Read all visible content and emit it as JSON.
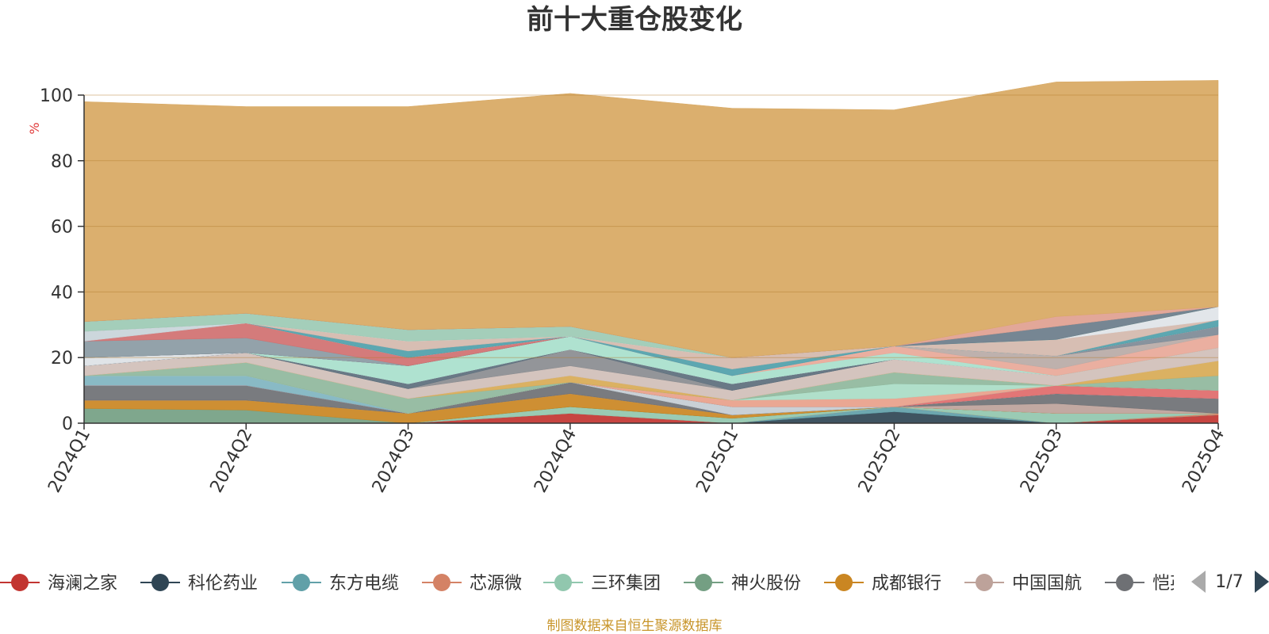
{
  "chart_data": {
    "type": "area",
    "stacked": true,
    "title": "前十大重仓股变化",
    "ylabel": "%",
    "ylim": [
      0,
      100
    ],
    "yticks": [
      0,
      20,
      40,
      60,
      80,
      100
    ],
    "grid": true,
    "categories": [
      "2024Q1",
      "2024Q2",
      "2024Q3",
      "2024Q4",
      "2025Q1",
      "2025Q2",
      "2025Q3",
      "2025Q4"
    ],
    "series": [
      {
        "name": "海澜之家",
        "color": "#c23531",
        "values": [
          0,
          0,
          0,
          3.0,
          0,
          0,
          0,
          2.5
        ]
      },
      {
        "name": "科伦药业",
        "color": "#2f4554",
        "values": [
          0,
          0,
          0,
          0,
          0,
          3.5,
          0,
          0
        ]
      },
      {
        "name": "东方电缆",
        "color": "#61a0a8",
        "values": [
          0,
          0,
          0,
          0,
          0,
          1.5,
          0,
          0
        ]
      },
      {
        "name": "芯源微",
        "color": "#d48265",
        "values": [
          0,
          0,
          0,
          0,
          0,
          0,
          0,
          0.5
        ]
      },
      {
        "name": "三环集团",
        "color": "#91c7ae",
        "values": [
          0,
          0,
          0,
          2.0,
          1.5,
          0,
          3.0,
          0
        ]
      },
      {
        "name": "神火股份",
        "color": "#749f83",
        "values": [
          4.5,
          4.0,
          0,
          0,
          0,
          0,
          0,
          0
        ]
      },
      {
        "name": "成都银行",
        "color": "#ca8622",
        "values": [
          2.5,
          3.0,
          3.0,
          4.0,
          1.0,
          0,
          0,
          0
        ]
      },
      {
        "name": "中国国航",
        "color": "#bda29a",
        "values": [
          0,
          0,
          0,
          0,
          0,
          0,
          3.0,
          0
        ]
      },
      {
        "name": "恺英网络",
        "color": "#6e7074",
        "values": [
          4.5,
          4.5,
          0,
          3.5,
          0,
          0,
          3.0,
          4.5
        ]
      },
      {
        "name": "",
        "color": "#546570",
        "values": [
          0,
          0,
          0,
          0,
          0,
          0,
          0,
          0
        ]
      },
      {
        "name": "",
        "color": "#c4ccd3",
        "values": [
          0,
          0,
          0,
          0,
          2.5,
          0,
          0,
          0
        ]
      },
      {
        "name": "",
        "color": "#e06a6a",
        "values": [
          0,
          0,
          0,
          0,
          0,
          0,
          2.5,
          2.5
        ]
      },
      {
        "name": "",
        "color": "#7fb4c0",
        "values": [
          3.0,
          3.0,
          0,
          0,
          0,
          0,
          0,
          0
        ]
      },
      {
        "name": "",
        "color": "#e89f8a",
        "values": [
          0,
          0,
          0,
          0,
          2.0,
          2.5,
          0,
          0
        ]
      },
      {
        "name": "",
        "color": "#a9dcc6",
        "values": [
          0,
          0,
          0,
          0,
          0,
          4.5,
          0,
          0
        ]
      },
      {
        "name": "",
        "color": "#8fb79c",
        "values": [
          0,
          4.0,
          4.5,
          0,
          0,
          3.5,
          0,
          4.5
        ]
      },
      {
        "name": "",
        "color": "#d8aa55",
        "values": [
          0,
          0,
          0,
          2.0,
          0,
          0,
          0,
          4.5
        ]
      },
      {
        "name": "",
        "color": "#d0bfb8",
        "values": [
          3.0,
          3.0,
          3.0,
          3.0,
          3.0,
          4.0,
          3.0,
          4.0
        ]
      },
      {
        "name": "",
        "color": "#8a8c90",
        "values": [
          0,
          0,
          0,
          5.0,
          0,
          0,
          0,
          0
        ]
      },
      {
        "name": "",
        "color": "#5c6e7c",
        "values": [
          0,
          0,
          1.5,
          0,
          2.0,
          0,
          0,
          0
        ]
      },
      {
        "name": "",
        "color": "#dde2e6",
        "values": [
          2.5,
          0,
          0,
          0,
          0,
          0,
          0,
          0
        ]
      },
      {
        "name": "",
        "color": "#a8e0cc",
        "values": [
          0,
          0,
          5.5,
          4.0,
          2.5,
          2.0,
          0,
          0
        ]
      },
      {
        "name": "",
        "color": "#e8a898",
        "values": [
          0,
          0,
          0,
          0,
          0,
          2.0,
          2.0,
          4.0
        ]
      },
      {
        "name": "",
        "color": "#b8aaa6",
        "values": [
          0,
          0,
          0,
          0,
          0,
          0,
          4.0,
          0
        ]
      },
      {
        "name": "",
        "color": "#7d8a96",
        "values": [
          0,
          0,
          0,
          0,
          0,
          0,
          0,
          2.5
        ]
      },
      {
        "name": "",
        "color": "#8a9aa3",
        "values": [
          5.0,
          4.5,
          0,
          0,
          0,
          0,
          0,
          0
        ]
      },
      {
        "name": "",
        "color": "#d07070",
        "values": [
          0,
          4.5,
          2.5,
          0,
          0,
          0,
          0,
          0
        ]
      },
      {
        "name": "",
        "color": "#c8d4d9",
        "values": [
          3.0,
          0,
          0,
          0,
          0,
          0,
          0,
          0
        ]
      },
      {
        "name": "",
        "color": "#4fa0aa",
        "values": [
          0,
          0,
          2.0,
          0,
          2.0,
          0,
          0,
          2.0
        ]
      },
      {
        "name": "",
        "color": "#d4b8ac",
        "values": [
          0,
          0,
          3.0,
          0,
          3.5,
          0,
          5.0,
          0
        ]
      },
      {
        "name": "",
        "color": "#e0e4e8",
        "values": [
          0,
          0,
          0,
          0,
          0,
          0,
          0,
          4.0
        ]
      },
      {
        "name": "",
        "color": "#9ccab4",
        "values": [
          3.0,
          3.0,
          3.5,
          3.0,
          0,
          0,
          0,
          0
        ]
      },
      {
        "name": "",
        "color": "#6a7c8a",
        "values": [
          0,
          0,
          0,
          0,
          0,
          0,
          4.0,
          0
        ]
      },
      {
        "name": "",
        "color": "#e0a090",
        "values": [
          0,
          0,
          0,
          0,
          0,
          0,
          3.0,
          0
        ]
      },
      {
        "name": "",
        "color": "#d8a862",
        "values": [
          67,
          63,
          68,
          71,
          76,
          72,
          71.5,
          69
        ]
      }
    ],
    "legend": {
      "position": "bottom",
      "visible_items": [
        "海澜之家",
        "科伦药业",
        "东方电缆",
        "芯源微",
        "三环集团",
        "神火股份",
        "成都银行",
        "中国国航",
        "恺英网络"
      ],
      "page": "1/7"
    },
    "source_note": "制图数据来自恒生聚源数据库"
  }
}
